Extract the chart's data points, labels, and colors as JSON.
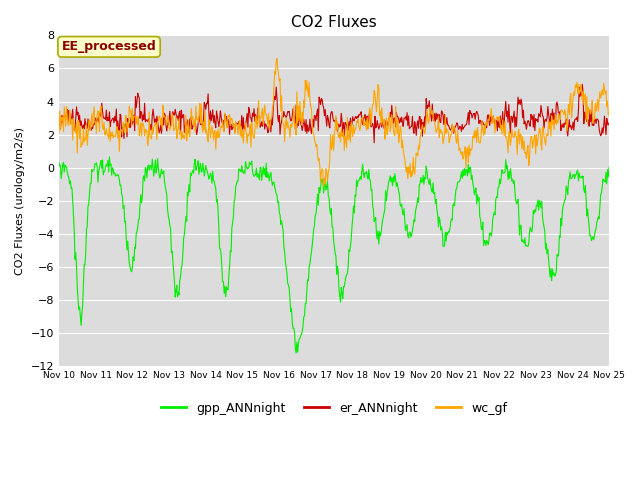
{
  "title": "CO2 Fluxes",
  "ylabel": "CO2 Fluxes (urology/m2/s)",
  "ylim": [
    -12,
    8
  ],
  "yticks": [
    -12,
    -10,
    -8,
    -6,
    -4,
    -2,
    0,
    2,
    4,
    6,
    8
  ],
  "x_tick_labels": [
    "Nov 10",
    "Nov 11",
    "Nov 12",
    "Nov 13",
    "Nov 14",
    "Nov 15",
    "Nov 16",
    "Nov 17",
    "Nov 18",
    "Nov 19",
    "Nov 20",
    "Nov 21",
    "Nov 22",
    "Nov 23",
    "Nov 24",
    "Nov 25"
  ],
  "bg_color": "#dcdcdc",
  "fig_bg": "#ffffff",
  "grid_color": "#ffffff",
  "annotation_text": "EE_processed",
  "annotation_box_color": "#ffffcc",
  "annotation_text_color": "#8b0000",
  "line_colors": {
    "gpp": "#00ee00",
    "er": "#cc0000",
    "wc": "#ffa500"
  },
  "legend_labels": [
    "gpp_ANNnight",
    "er_ANNnight",
    "wc_gf"
  ]
}
